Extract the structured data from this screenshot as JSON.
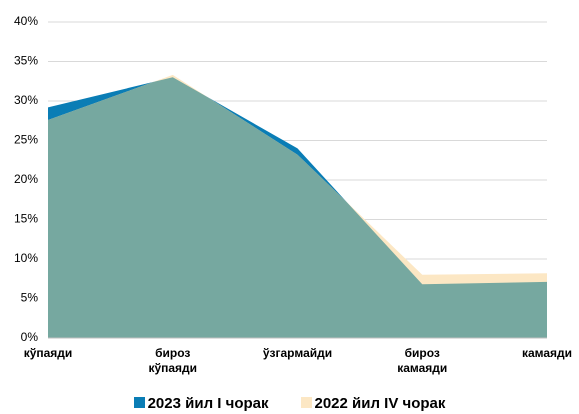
{
  "chart_data": {
    "type": "area",
    "categories": [
      "кўпаяди",
      "бироз\nкўпаяди",
      "ўзгармайди",
      "бироз\nкамаяди",
      "камаяди"
    ],
    "series": [
      {
        "name": "2023 йил I чорак",
        "color": "#0a7db5",
        "values": [
          29.2,
          33.0,
          24.0,
          6.8,
          7.1
        ]
      },
      {
        "name": "2022 йил IV чорак",
        "color": "#fce7c4",
        "values": [
          27.6,
          33.3,
          23.2,
          8.0,
          8.2
        ]
      }
    ],
    "overlap_color": "#76a8a0",
    "ylim": [
      0,
      40
    ],
    "yticks": [
      {
        "value": 0,
        "label": "0%"
      },
      {
        "value": 5,
        "label": "5%"
      },
      {
        "value": 10,
        "label": "10%"
      },
      {
        "value": 15,
        "label": "15%"
      },
      {
        "value": 20,
        "label": "20%"
      },
      {
        "value": 25,
        "label": "25%"
      },
      {
        "value": 30,
        "label": "30%"
      },
      {
        "value": 35,
        "label": "35%"
      },
      {
        "value": 40,
        "label": "40%"
      }
    ],
    "grid": true,
    "legend": "bottom"
  }
}
